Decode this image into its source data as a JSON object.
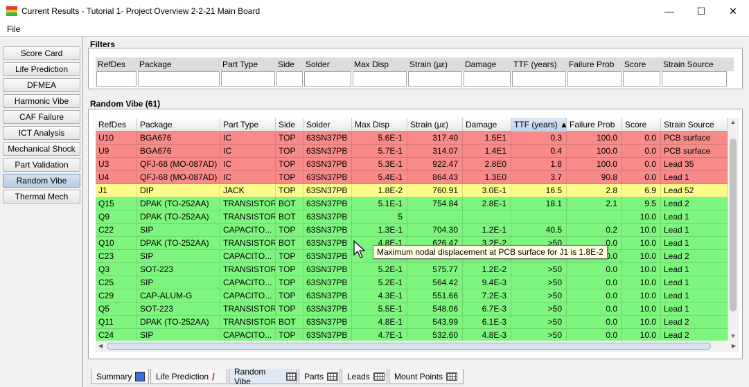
{
  "window": {
    "title": "Current Results - Tutorial 1- Project Overview 2-2-21 Main Board",
    "minimize": "—",
    "maximize": "☐",
    "close": "✕"
  },
  "menu": {
    "file": "File"
  },
  "nav": {
    "items": [
      {
        "label": "Score Card"
      },
      {
        "label": "Life Prediction"
      },
      {
        "label": "DFMEA"
      },
      {
        "label": "Harmonic Vibe"
      },
      {
        "label": "CAF Failure"
      },
      {
        "label": "ICT Analysis"
      },
      {
        "label": "Mechanical Shock"
      },
      {
        "label": "Part Validation"
      },
      {
        "label": "Random Vibe",
        "active": true
      },
      {
        "label": "Thermal Mech"
      }
    ]
  },
  "filters": {
    "title": "Filters",
    "columns": [
      "RefDes",
      "Package",
      "Part Type",
      "Side",
      "Solder",
      "Max Disp",
      "Strain (µε)",
      "Damage",
      "TTF (years)",
      "Failure Prob",
      "Score",
      "Strain Source"
    ]
  },
  "grid": {
    "title": "Random Vibe (61)",
    "headers": [
      "RefDes",
      "Package",
      "Part Type",
      "Side",
      "Solder",
      "Max Disp",
      "Strain (µε)",
      "Damage",
      "TTF (years) ▲",
      "Failure Prob",
      "Score",
      "Strain Source"
    ],
    "rows": [
      {
        "status": "red",
        "cells": [
          "U10",
          "BGA676",
          "IC",
          "TOP",
          "63SN37PB",
          "5.6E-1",
          "317.40",
          "1.5E1",
          "0.3",
          "100.0",
          "0.0",
          "PCB surface"
        ]
      },
      {
        "status": "red",
        "cells": [
          "U9",
          "BGA676",
          "IC",
          "TOP",
          "63SN37PB",
          "5.7E-1",
          "314.07",
          "1.4E1",
          "0.4",
          "100.0",
          "0.0",
          "PCB surface"
        ]
      },
      {
        "status": "red",
        "cells": [
          "U3",
          "QFJ-68 (MO-087AD)",
          "IC",
          "TOP",
          "63SN37PB",
          "5.3E-1",
          "922.47",
          "2.8E0",
          "1.8",
          "100.0",
          "0.0",
          "Lead 35"
        ]
      },
      {
        "status": "red",
        "cells": [
          "U4",
          "QFJ-68 (MO-087AD)",
          "IC",
          "TOP",
          "63SN37PB",
          "5.4E-1",
          "864.43",
          "1.3E0",
          "3.7",
          "90.8",
          "0.0",
          "Lead 1"
        ]
      },
      {
        "status": "yellow",
        "cells": [
          "J1",
          "DIP",
          "JACK",
          "TOP",
          "63SN37PB",
          "1.8E-2",
          "760.91",
          "3.0E-1",
          "16.5",
          "2.8",
          "6.9",
          "Lead 52"
        ]
      },
      {
        "status": "green",
        "cells": [
          "Q15",
          "DPAK (TO-252AA)",
          "TRANSISTOR",
          "BOT",
          "63SN37PB",
          "5.1E-1",
          "754.84",
          "2.8E-1",
          "18.1",
          "2.1",
          "9.5",
          "Lead 2"
        ]
      },
      {
        "status": "green",
        "cells": [
          "Q9",
          "DPAK (TO-252AA)",
          "TRANSISTOR",
          "BOT",
          "63SN37PB",
          "5",
          "",
          "",
          "",
          "",
          "10.0",
          "Lead 1"
        ]
      },
      {
        "status": "green",
        "cells": [
          "C22",
          "SIP",
          "CAPACITO...",
          "TOP",
          "63SN37PB",
          "1.3E-1",
          "704.30",
          "1.2E-1",
          "40.5",
          "0.2",
          "10.0",
          "Lead 1"
        ]
      },
      {
        "status": "green",
        "cells": [
          "Q10",
          "DPAK (TO-252AA)",
          "TRANSISTOR",
          "BOT",
          "63SN37PB",
          "4.8E-1",
          "626.47",
          "3.2E-2",
          ">50",
          "0.0",
          "10.0",
          "Lead 1"
        ]
      },
      {
        "status": "green",
        "cells": [
          "C23",
          "SIP",
          "CAPACITO...",
          "TOP",
          "63SN37PB",
          "5.0E-1",
          "611.17",
          "2.4E-2",
          ">50",
          "0.0",
          "10.0",
          "Lead 2"
        ]
      },
      {
        "status": "green",
        "cells": [
          "Q3",
          "SOT-223",
          "TRANSISTOR",
          "TOP",
          "63SN37PB",
          "5.2E-1",
          "575.77",
          "1.2E-2",
          ">50",
          "0.0",
          "10.0",
          "Lead 1"
        ]
      },
      {
        "status": "green",
        "cells": [
          "C25",
          "SIP",
          "CAPACITO...",
          "TOP",
          "63SN37PB",
          "5.2E-1",
          "564.42",
          "9.4E-3",
          ">50",
          "0.0",
          "10.0",
          "Lead 1"
        ]
      },
      {
        "status": "green",
        "cells": [
          "C29",
          "CAP-ALUM-G",
          "CAPACITO...",
          "TOP",
          "63SN37PB",
          "4.3E-1",
          "551.66",
          "7.2E-3",
          ">50",
          "0.0",
          "10.0",
          "Lead 1"
        ]
      },
      {
        "status": "green",
        "cells": [
          "Q5",
          "SOT-223",
          "TRANSISTOR",
          "TOP",
          "63SN37PB",
          "5.5E-1",
          "548.06",
          "6.7E-3",
          ">50",
          "0.0",
          "10.0",
          "Lead 1"
        ]
      },
      {
        "status": "green",
        "cells": [
          "Q11",
          "DPAK (TO-252AA)",
          "TRANSISTOR",
          "BOT",
          "63SN37PB",
          "4.8E-1",
          "543.99",
          "6.1E-3",
          ">50",
          "0.0",
          "10.0",
          "Lead 2"
        ]
      },
      {
        "status": "green",
        "cells": [
          "C24",
          "SIP",
          "CAPACITO...",
          "TOP",
          "63SN37PB",
          "4.7E-1",
          "532.60",
          "4.8E-3",
          ">50",
          "0.0",
          "10.0",
          "Lead 2"
        ]
      }
    ],
    "tooltip": "Maximum nodal displacement at PCB surface for J1 is 1.8E-2"
  },
  "tabs": [
    {
      "label": "Summary",
      "icon": "summary-icon"
    },
    {
      "label": "Life Prediction",
      "icon": "chart-icon"
    },
    {
      "label": "Random Vibe",
      "icon": "grid-icon",
      "active": true
    },
    {
      "label": "Parts",
      "icon": "grid-icon"
    },
    {
      "label": "Leads",
      "icon": "grid-icon"
    },
    {
      "label": "Mount Points",
      "icon": "grid-icon"
    }
  ]
}
